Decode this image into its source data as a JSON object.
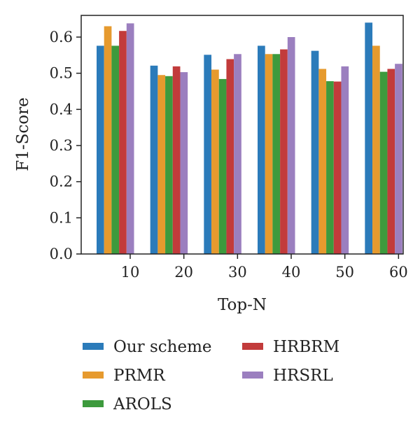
{
  "chart_data": {
    "type": "bar",
    "title": "",
    "xlabel": "Top-N",
    "ylabel": "F1-Score",
    "categories": [
      "10",
      "20",
      "30",
      "40",
      "50",
      "60"
    ],
    "ylim": [
      0,
      0.66
    ],
    "yticks": [
      "0.0",
      "0.1",
      "0.2",
      "0.3",
      "0.4",
      "0.5",
      "0.6"
    ],
    "grid": false,
    "legend_position": "bottom",
    "series": [
      {
        "name": "Our scheme",
        "color": "#2b7bba",
        "values": [
          0.576,
          0.521,
          0.551,
          0.576,
          0.562,
          0.64
        ]
      },
      {
        "name": "PRMR",
        "color": "#e69a2e",
        "values": [
          0.63,
          0.495,
          0.51,
          0.553,
          0.512,
          0.576
        ]
      },
      {
        "name": "AROLS",
        "color": "#3d9a3d",
        "values": [
          0.576,
          0.492,
          0.484,
          0.553,
          0.478,
          0.504
        ]
      },
      {
        "name": "HRBRM",
        "color": "#c23b3b",
        "values": [
          0.617,
          0.519,
          0.539,
          0.566,
          0.477,
          0.512
        ]
      },
      {
        "name": "HRSRL",
        "color": "#9b7fbf",
        "values": [
          0.638,
          0.503,
          0.553,
          0.6,
          0.519,
          0.526
        ]
      }
    ]
  }
}
